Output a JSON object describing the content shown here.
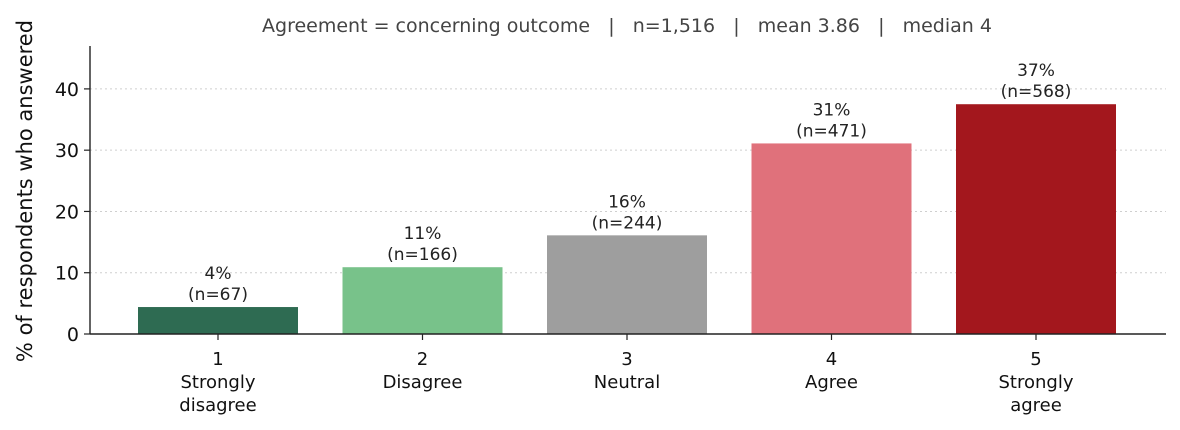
{
  "chart_data": {
    "type": "bar",
    "title": "Agreement = concerning outcome   |   n=1,516   |   mean 3.86   |   median 4",
    "xlabel": "",
    "ylabel": "% of respondents who answered",
    "ylim": [
      0,
      47
    ],
    "yticks": [
      0,
      10,
      20,
      30,
      40
    ],
    "grid": "horizontal dotted",
    "categories": [
      {
        "code": "1",
        "label": [
          "Strongly",
          "disagree"
        ]
      },
      {
        "code": "2",
        "label": [
          "Disagree"
        ]
      },
      {
        "code": "3",
        "label": [
          "Neutral"
        ]
      },
      {
        "code": "4",
        "label": [
          "Agree"
        ]
      },
      {
        "code": "5",
        "label": [
          "Strongly",
          "agree"
        ]
      }
    ],
    "values": [
      4.4,
      10.9,
      16.1,
      31.1,
      37.5
    ],
    "data_labels": [
      [
        "4%",
        "(n=67)"
      ],
      [
        "11%",
        "(n=166)"
      ],
      [
        "16%",
        "(n=244)"
      ],
      [
        "31%",
        "(n=471)"
      ],
      [
        "37%",
        "(n=568)"
      ]
    ],
    "colors": [
      "#2e6b52",
      "#78c28a",
      "#9e9e9e",
      "#e0717b",
      "#a3171d"
    ]
  }
}
